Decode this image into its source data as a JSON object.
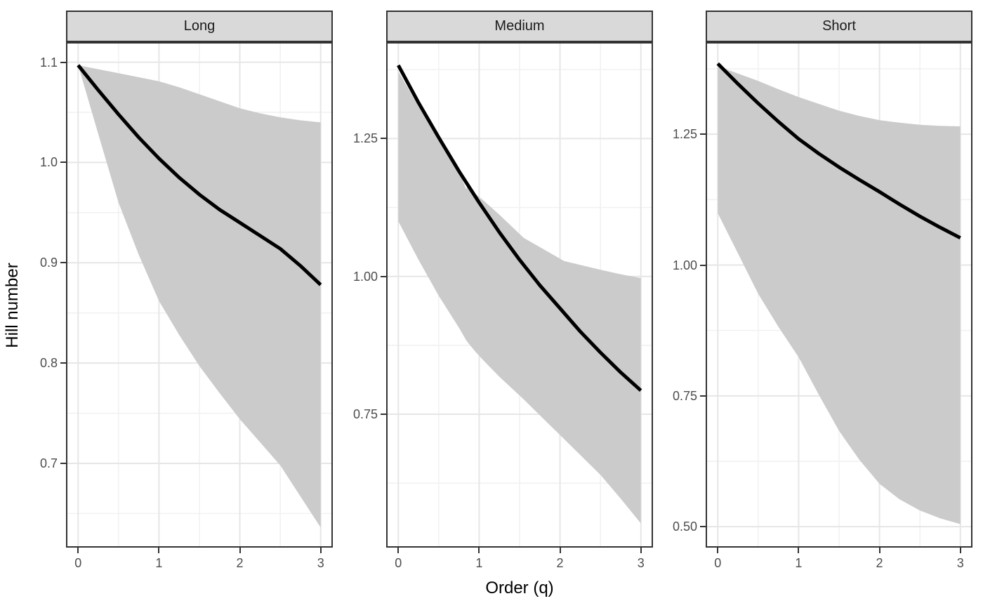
{
  "chart_data": {
    "type": "line",
    "title": "",
    "xlabel": "Order (q)",
    "ylabel": "Hill number",
    "x_ticks": [
      0,
      1,
      2,
      3
    ],
    "x_tick_labels": [
      "0",
      "1",
      "2",
      "3"
    ],
    "x_minor": [
      0.5,
      1.5,
      2.5
    ],
    "x_range": [
      -0.15,
      3.15
    ],
    "grid": "on",
    "legend": "none",
    "facets": [
      {
        "label": "Long",
        "y_range": [
          0.616,
          1.12
        ],
        "y_ticks": [
          0.7,
          0.8,
          0.9,
          1.0,
          1.1
        ],
        "y_tick_labels": [
          "0.7",
          "0.8",
          "0.9",
          "1.0",
          "1.1"
        ],
        "y_minor": [
          0.65,
          0.75,
          0.85,
          0.95,
          1.05
        ],
        "q_est": [
          0,
          0.25,
          0.5,
          0.75,
          1,
          1.25,
          1.5,
          1.75,
          2,
          2.25,
          2.5,
          2.75,
          3
        ],
        "estimate": [
          1.097,
          1.072,
          1.048,
          1.025,
          1.004,
          0.985,
          0.968,
          0.953,
          0.94,
          0.927,
          0.914,
          0.897,
          0.878
        ],
        "q_band": [
          0,
          0.25,
          0.5,
          0.75,
          1,
          1.25,
          1.5,
          1.75,
          2,
          2.25,
          2.5,
          2.75,
          3
        ],
        "upper": [
          1.097,
          1.093,
          1.089,
          1.085,
          1.081,
          1.075,
          1.068,
          1.061,
          1.054,
          1.049,
          1.045,
          1.042,
          1.04
        ],
        "lower": [
          1.097,
          1.028,
          0.96,
          0.908,
          0.862,
          0.828,
          0.797,
          0.77,
          0.744,
          0.721,
          0.698,
          0.667,
          0.636
        ]
      },
      {
        "label": "Medium",
        "y_range": [
          0.508,
          1.425
        ],
        "y_ticks": [
          0.75,
          1.0,
          1.25
        ],
        "y_tick_labels": [
          "0.75",
          "1.00",
          "1.25"
        ],
        "y_minor": [
          0.625,
          0.875,
          1.125,
          1.375
        ],
        "q_est": [
          0,
          0.25,
          0.5,
          0.75,
          1,
          1.25,
          1.5,
          1.75,
          2,
          2.25,
          2.5,
          2.75,
          3
        ],
        "estimate": [
          1.383,
          1.315,
          1.252,
          1.191,
          1.134,
          1.08,
          1.03,
          0.984,
          0.942,
          0.9,
          0.862,
          0.826,
          0.793
        ],
        "q_band": [
          0,
          0.25,
          0.5,
          0.75,
          0.84,
          0.86,
          0.95,
          1.05,
          1.25,
          1.55,
          2.05,
          2.5,
          2.75,
          3
        ],
        "upper": [
          1.372,
          1.308,
          1.248,
          1.19,
          1.158,
          1.166,
          1.15,
          1.138,
          1.112,
          1.07,
          1.028,
          1.012,
          1.004,
          0.997
        ],
        "lower": [
          1.1,
          1.03,
          0.965,
          0.907,
          0.884,
          0.88,
          0.864,
          0.848,
          0.818,
          0.777,
          0.705,
          0.64,
          0.597,
          0.552
        ]
      },
      {
        "label": "Short",
        "y_range": [
          0.46,
          1.426
        ],
        "y_ticks": [
          0.5,
          0.75,
          1.0,
          1.25
        ],
        "y_tick_labels": [
          "0.50",
          "0.75",
          "1.00",
          "1.25"
        ],
        "y_minor": [
          0.625,
          0.875,
          1.125,
          1.375
        ],
        "q_est": [
          0,
          0.25,
          0.5,
          0.75,
          1,
          1.25,
          1.5,
          1.75,
          2,
          2.25,
          2.5,
          2.75,
          3
        ],
        "estimate": [
          1.385,
          1.346,
          1.309,
          1.274,
          1.241,
          1.213,
          1.187,
          1.163,
          1.14,
          1.116,
          1.093,
          1.072,
          1.052
        ],
        "q_band": [
          0,
          0.25,
          0.5,
          0.75,
          1,
          1.25,
          1.5,
          1.75,
          2,
          2.25,
          2.5,
          2.75,
          3
        ],
        "upper": [
          1.38,
          1.366,
          1.352,
          1.336,
          1.321,
          1.308,
          1.295,
          1.285,
          1.277,
          1.272,
          1.268,
          1.266,
          1.265
        ],
        "lower": [
          1.099,
          1.022,
          0.945,
          0.882,
          0.824,
          0.752,
          0.683,
          0.628,
          0.582,
          0.552,
          0.531,
          0.516,
          0.505
        ]
      }
    ]
  },
  "colors": {
    "curve": "#000000",
    "ribbon": "#cbcbcb",
    "strip_fill": "#d9d9d9",
    "strip_border": "#333333",
    "panel_border": "#333333",
    "grid_major": "#e6e6e6",
    "grid_minor": "#f1f1f1",
    "tick": "#333333",
    "tick_label": "#4d4d4d",
    "background": "#ffffff"
  }
}
